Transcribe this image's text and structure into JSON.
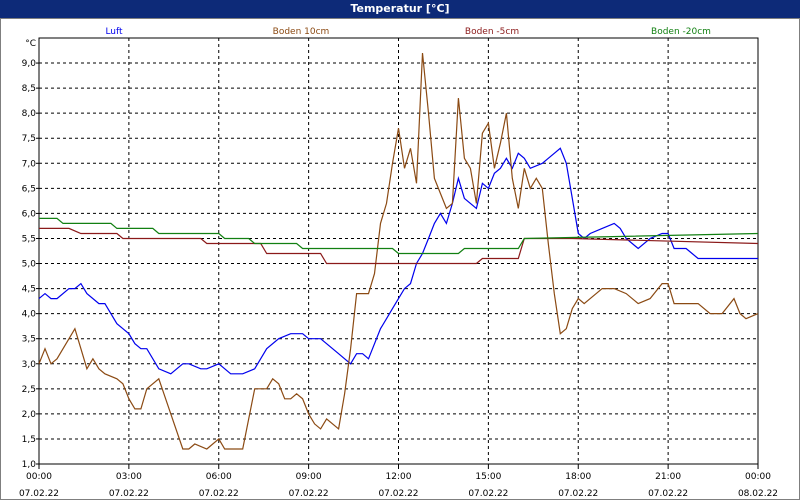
{
  "window": {
    "title": "Temperatur [°C]"
  },
  "chart_data": {
    "type": "line",
    "title": "Temperatur [°C]",
    "ylabel": "°C",
    "ylim": [
      1.0,
      9.5
    ],
    "yticks": [
      "1,0",
      "1,5",
      "2,0",
      "2,5",
      "3,0",
      "3,5",
      "4,0",
      "4,5",
      "5,0",
      "5,5",
      "6,0",
      "6,5",
      "7,0",
      "7,5",
      "8,0",
      "8,5",
      "9,0"
    ],
    "xlim": [
      0,
      24
    ],
    "xticks": [
      {
        "time": "00:00",
        "date": "07.02.22"
      },
      {
        "time": "03:00",
        "date": "07.02.22"
      },
      {
        "time": "06:00",
        "date": "07.02.22"
      },
      {
        "time": "09:00",
        "date": "07.02.22"
      },
      {
        "time": "12:00",
        "date": "07.02.22"
      },
      {
        "time": "15:00",
        "date": "07.02.22"
      },
      {
        "time": "18:00",
        "date": "07.02.22"
      },
      {
        "time": "21:00",
        "date": "07.02.22"
      },
      {
        "time": "00:00",
        "date": "08.02.22"
      }
    ],
    "grid": true,
    "series": [
      {
        "name": "Luft",
        "color": "#0000ee",
        "x": [
          0,
          0.2,
          0.4,
          0.6,
          1.0,
          1.2,
          1.4,
          1.6,
          2.0,
          2.2,
          2.6,
          2.8,
          3.0,
          3.2,
          3.4,
          3.6,
          4.0,
          4.4,
          4.6,
          4.8,
          5.0,
          5.4,
          5.6,
          6.0,
          6.4,
          6.8,
          7.2,
          7.6,
          8.0,
          8.4,
          8.8,
          9.0,
          9.4,
          9.6,
          9.8,
          10.0,
          10.4,
          10.6,
          10.8,
          11.0,
          11.4,
          11.6,
          11.8,
          12.0,
          12.2,
          12.4,
          12.6,
          12.8,
          13.0,
          13.2,
          13.4,
          13.6,
          13.8,
          14.0,
          14.2,
          14.6,
          14.8,
          15.0,
          15.2,
          15.4,
          15.6,
          15.8,
          16.0,
          16.2,
          16.4,
          16.8,
          17.0,
          17.2,
          17.4,
          17.6,
          17.8,
          18.0,
          18.2,
          18.4,
          18.8,
          19.2,
          19.4,
          19.6,
          20.0,
          20.4,
          20.8,
          21.0,
          21.2,
          21.6,
          21.8,
          22.0,
          22.4,
          22.8,
          23.2,
          23.6,
          24.0
        ],
        "y": [
          4.3,
          4.4,
          4.3,
          4.3,
          4.5,
          4.5,
          4.6,
          4.4,
          4.2,
          4.2,
          3.8,
          3.7,
          3.6,
          3.4,
          3.3,
          3.3,
          2.9,
          2.8,
          2.9,
          3.0,
          3.0,
          2.9,
          2.9,
          3.0,
          2.8,
          2.8,
          2.9,
          3.3,
          3.5,
          3.6,
          3.6,
          3.5,
          3.5,
          3.4,
          3.3,
          3.2,
          3.0,
          3.2,
          3.2,
          3.1,
          3.7,
          3.9,
          4.1,
          4.3,
          4.5,
          4.6,
          5.0,
          5.2,
          5.5,
          5.8,
          6.0,
          5.8,
          6.2,
          6.7,
          6.3,
          6.1,
          6.6,
          6.5,
          6.8,
          6.9,
          7.1,
          6.9,
          7.2,
          7.1,
          6.9,
          7.0,
          7.1,
          7.2,
          7.3,
          7.0,
          6.3,
          5.6,
          5.5,
          5.6,
          5.7,
          5.8,
          5.7,
          5.5,
          5.3,
          5.5,
          5.6,
          5.6,
          5.3,
          5.3,
          5.2,
          5.1,
          5.1,
          5.1,
          5.1,
          5.1,
          5.1
        ]
      },
      {
        "name": "Boden 10cm",
        "color": "#8b4a13",
        "x": [
          0,
          0.2,
          0.4,
          0.6,
          1.0,
          1.2,
          1.4,
          1.6,
          1.8,
          2.0,
          2.2,
          2.6,
          2.8,
          3.0,
          3.2,
          3.4,
          3.6,
          4.0,
          4.4,
          4.8,
          5.0,
          5.2,
          5.6,
          6.0,
          6.2,
          6.4,
          6.8,
          7.0,
          7.2,
          7.4,
          7.6,
          7.8,
          8.0,
          8.2,
          8.4,
          8.6,
          8.8,
          9.0,
          9.2,
          9.4,
          9.6,
          10.0,
          10.2,
          10.4,
          10.6,
          11.0,
          11.2,
          11.4,
          11.6,
          11.8,
          12.0,
          12.2,
          12.4,
          12.6,
          12.8,
          13.0,
          13.2,
          13.4,
          13.6,
          13.8,
          14.0,
          14.2,
          14.4,
          14.6,
          14.8,
          15.0,
          15.2,
          15.4,
          15.6,
          15.8,
          16.0,
          16.2,
          16.4,
          16.6,
          16.8,
          17.0,
          17.2,
          17.4,
          17.6,
          17.8,
          18.0,
          18.2,
          18.4,
          18.8,
          19.2,
          19.6,
          20.0,
          20.4,
          20.8,
          21.0,
          21.2,
          21.6,
          22.0,
          22.4,
          22.8,
          23.2,
          23.4,
          23.6,
          24.0
        ],
        "y": [
          3.0,
          3.3,
          3.0,
          3.1,
          3.5,
          3.7,
          3.3,
          2.9,
          3.1,
          2.9,
          2.8,
          2.7,
          2.6,
          2.3,
          2.1,
          2.1,
          2.5,
          2.7,
          2.0,
          1.3,
          1.3,
          1.4,
          1.3,
          1.5,
          1.3,
          1.3,
          1.3,
          1.9,
          2.5,
          2.5,
          2.5,
          2.7,
          2.6,
          2.3,
          2.3,
          2.4,
          2.3,
          2.0,
          1.8,
          1.7,
          1.9,
          1.7,
          2.4,
          3.3,
          4.4,
          4.4,
          4.8,
          5.8,
          6.2,
          7.0,
          7.7,
          6.9,
          7.3,
          6.6,
          9.2,
          8.0,
          6.7,
          6.4,
          6.1,
          6.2,
          8.3,
          7.1,
          6.9,
          6.2,
          7.6,
          7.8,
          6.9,
          7.4,
          8.0,
          6.7,
          6.1,
          6.9,
          6.5,
          6.7,
          6.5,
          5.4,
          4.4,
          3.6,
          3.7,
          4.1,
          4.3,
          4.2,
          4.3,
          4.5,
          4.5,
          4.4,
          4.2,
          4.3,
          4.6,
          4.6,
          4.2,
          4.2,
          4.2,
          4.0,
          4.0,
          4.3,
          4.0,
          3.9,
          4.0
        ]
      },
      {
        "name": "Boden -5cm",
        "color": "#8b1a1a",
        "x": [
          0,
          1.0,
          1.4,
          2.6,
          2.8,
          5.4,
          5.6,
          7.4,
          7.6,
          9.4,
          9.6,
          14.6,
          14.8,
          16.0,
          16.2,
          17.6,
          17.8,
          24.0
        ],
        "y": [
          5.7,
          5.7,
          5.6,
          5.6,
          5.5,
          5.5,
          5.4,
          5.4,
          5.2,
          5.2,
          5.0,
          5.0,
          5.1,
          5.1,
          5.5,
          5.5,
          5.5,
          5.4
        ]
      },
      {
        "name": "Boden -20cm",
        "color": "#128012",
        "x": [
          0,
          0.2,
          0.6,
          0.8,
          2.4,
          2.6,
          3.8,
          4.0,
          6.0,
          6.2,
          7.0,
          7.2,
          8.6,
          8.8,
          11.8,
          12.0,
          14.0,
          14.2,
          16.0,
          16.2,
          24.0
        ],
        "y": [
          5.9,
          5.9,
          5.9,
          5.8,
          5.8,
          5.7,
          5.7,
          5.6,
          5.6,
          5.5,
          5.5,
          5.4,
          5.4,
          5.3,
          5.3,
          5.2,
          5.2,
          5.3,
          5.3,
          5.5,
          5.6
        ]
      }
    ]
  }
}
